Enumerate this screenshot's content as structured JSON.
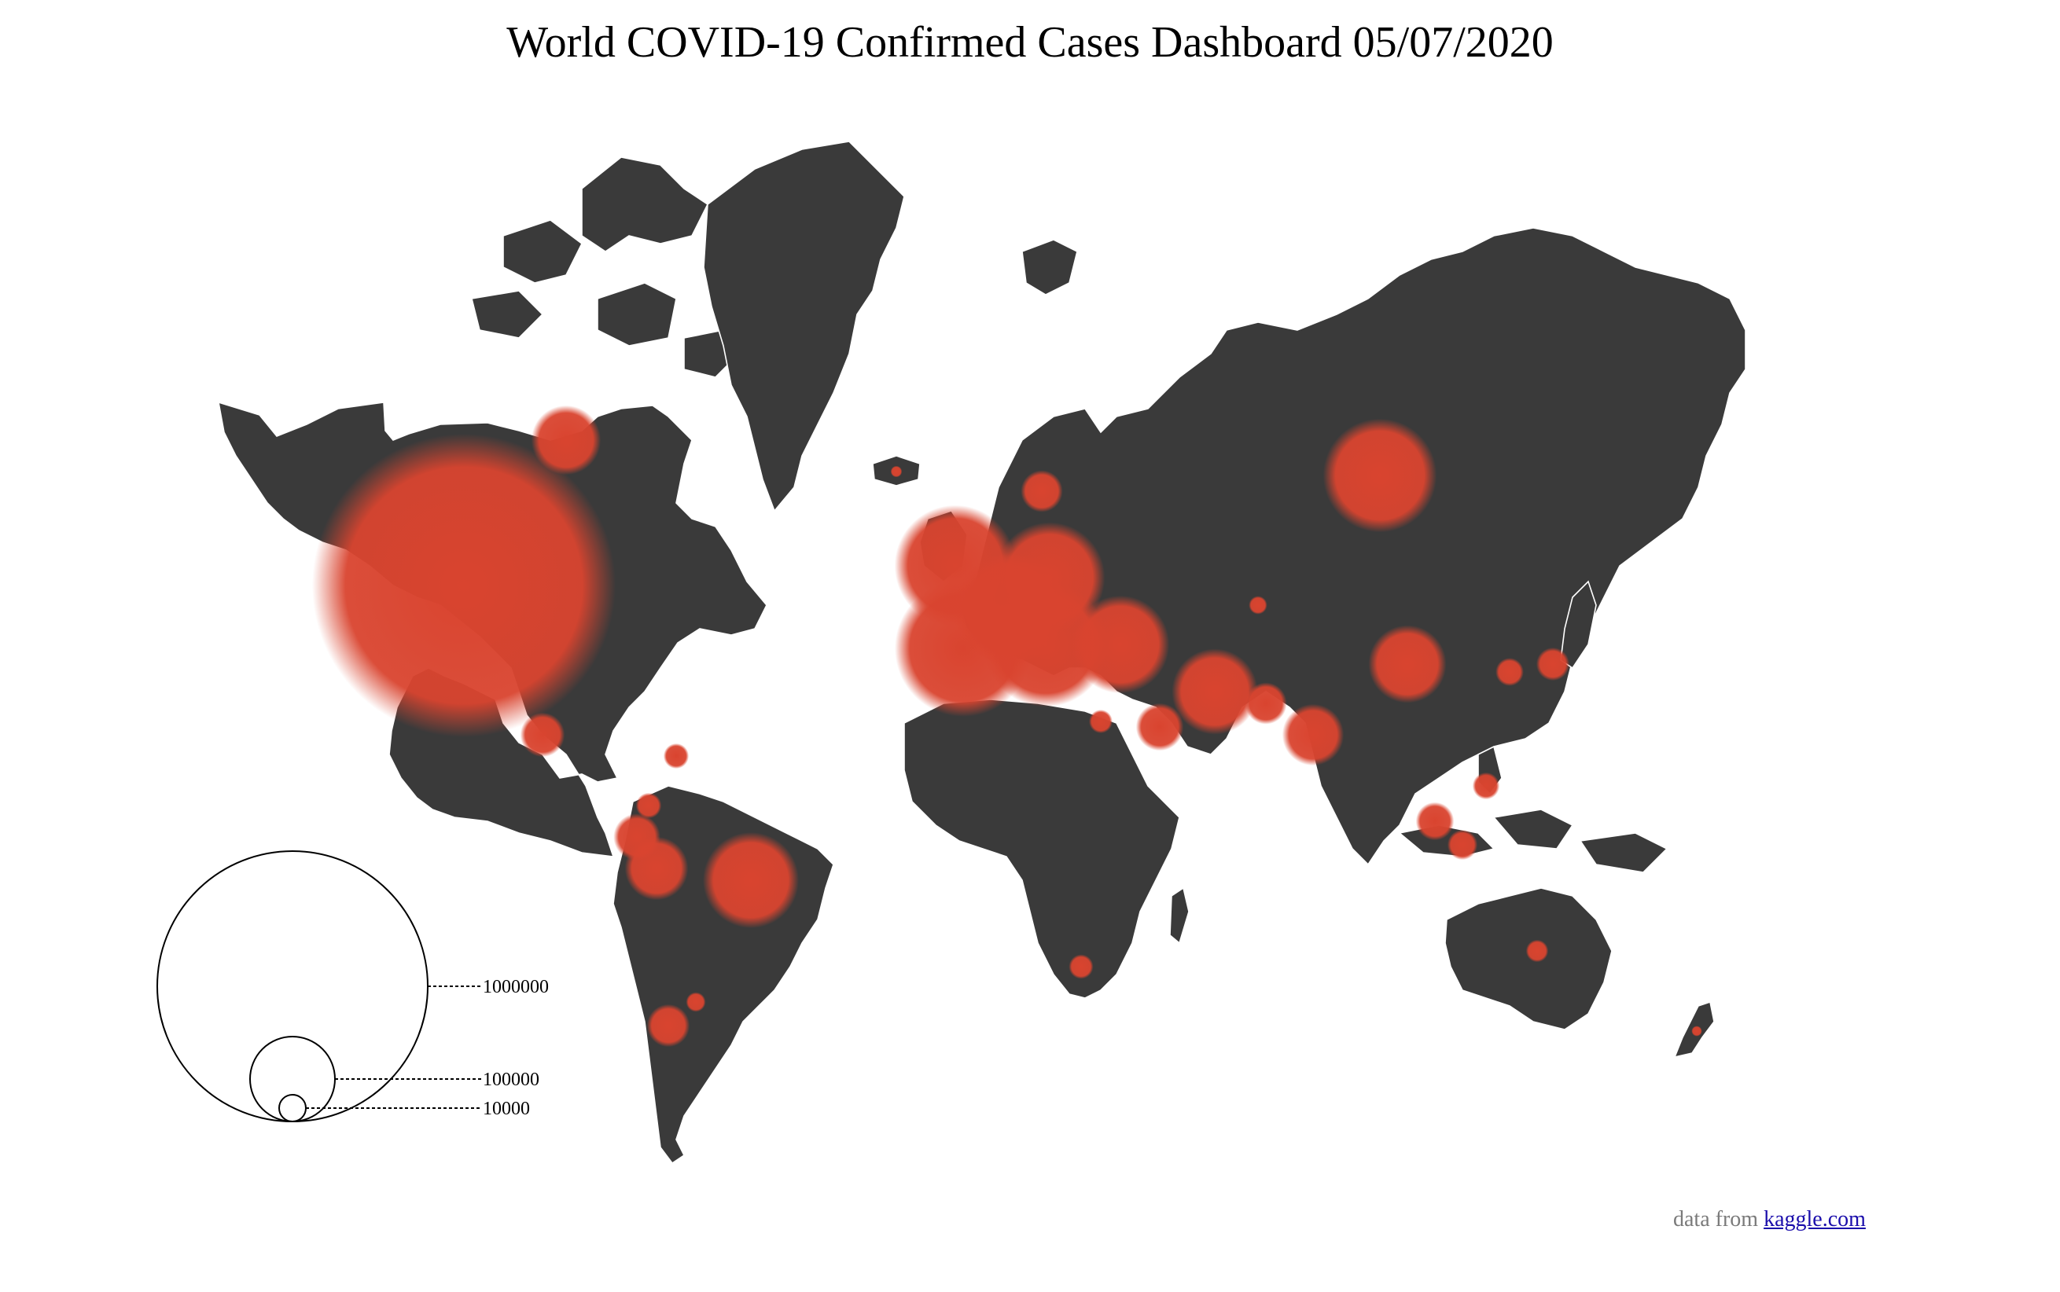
{
  "title": "World COVID-19 Confirmed Cases Dashboard 05/07/2020",
  "colors": {
    "land": "#3a3a3a",
    "borders": "#ffffff",
    "bubble": "#d9442f",
    "background": "#ffffff"
  },
  "legend": {
    "entries": [
      {
        "value": 1000000,
        "label": "1000000"
      },
      {
        "value": 100000,
        "label": "100000"
      },
      {
        "value": 10000,
        "label": "10000"
      }
    ]
  },
  "credit": {
    "prefix": "data from ",
    "link_text": "kaggle.com"
  },
  "bubbles": [
    {
      "name": "US",
      "cases": 1260000
    },
    {
      "name": "Canada",
      "cases": 66000
    },
    {
      "name": "Brazil",
      "cases": 126000
    },
    {
      "name": "Peru",
      "cases": 55000
    },
    {
      "name": "Ecuador",
      "cases": 30000
    },
    {
      "name": "Mexico",
      "cases": 27000
    },
    {
      "name": "Chile",
      "cases": 25000
    },
    {
      "name": "Spain",
      "cases": 256000
    },
    {
      "name": "Italy",
      "cases": 214000
    },
    {
      "name": "UK",
      "cases": 202000
    },
    {
      "name": "France",
      "cases": 174000
    },
    {
      "name": "Germany",
      "cases": 168000
    },
    {
      "name": "Russia",
      "cases": 177000
    },
    {
      "name": "Turkey",
      "cases": 131000
    },
    {
      "name": "Iran",
      "cases": 101000
    },
    {
      "name": "China",
      "cases": 83000
    },
    {
      "name": "India",
      "cases": 52000
    },
    {
      "name": "Saudi Arabia",
      "cases": 31000
    },
    {
      "name": "Pakistan",
      "cases": 24000
    },
    {
      "name": "Japan",
      "cases": 15000
    },
    {
      "name": "Korea",
      "cases": 10800
    },
    {
      "name": "Singapore",
      "cases": 20000
    },
    {
      "name": "Indonesia",
      "cases": 12400
    },
    {
      "name": "Philippines",
      "cases": 10000
    },
    {
      "name": "Australia",
      "cases": 6900
    },
    {
      "name": "South Africa",
      "cases": 8200
    },
    {
      "name": "Egypt",
      "cases": 7600
    },
    {
      "name": "Sweden",
      "cases": 24000
    },
    {
      "name": "Iceland",
      "cases": 1800
    },
    {
      "name": "Colombia",
      "cases": 9000
    },
    {
      "name": "Argentina",
      "cases": 5300
    },
    {
      "name": "Dominican Republic",
      "cases": 8800
    },
    {
      "name": "New Zealand",
      "cases": 1500
    },
    {
      "name": "Kazakhstan",
      "cases": 4600
    }
  ]
}
